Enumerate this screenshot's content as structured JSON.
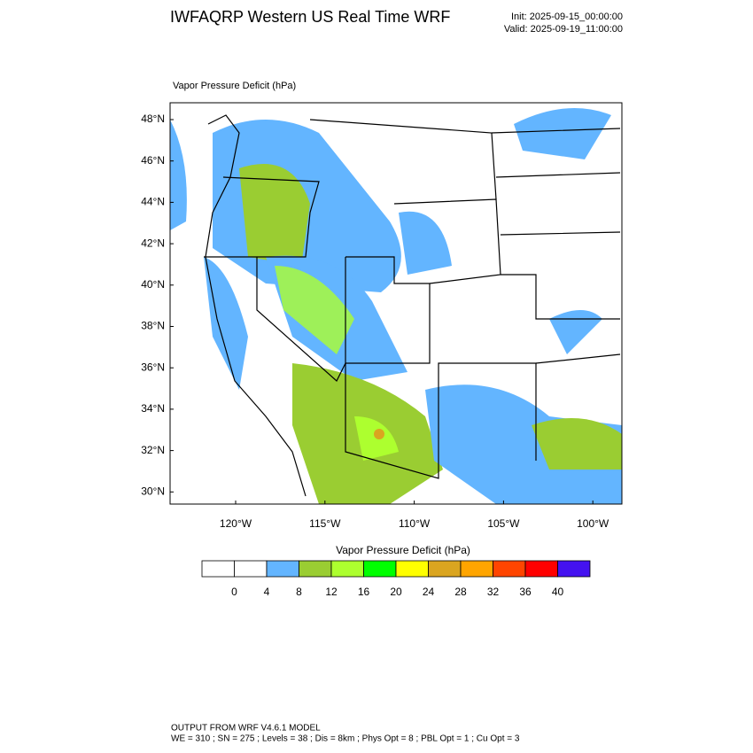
{
  "header": {
    "title": "IWFAQRP Western US Real Time WRF",
    "init": "Init: 2025-09-15_00:00:00",
    "valid": "Valid: 2025-09-19_11:00:00"
  },
  "map": {
    "label": "Vapor Pressure Deficit   (hPa)",
    "lat_labels": [
      "48°N",
      "46°N",
      "44°N",
      "42°N",
      "40°N",
      "38°N",
      "36°N",
      "34°N",
      "32°N",
      "30°N"
    ],
    "lon_labels": [
      "120°W",
      "115°W",
      "110°W",
      "105°W",
      "100°W"
    ]
  },
  "colorbar": {
    "title": "Vapor Pressure Deficit  (hPa)",
    "colors": [
      "#ffffff",
      "#ffffff",
      "#63b5ff",
      "#9acd32",
      "#adff2f",
      "#00ff00",
      "#ffff00",
      "#daa520",
      "#ffa500",
      "#ff4500",
      "#ff0000",
      "#4412f0"
    ],
    "labels": [
      0,
      4,
      8,
      12,
      16,
      20,
      24,
      28,
      32,
      36,
      40
    ]
  },
  "footer": {
    "line1": "OUTPUT FROM WRF V4.6.1 MODEL",
    "line2": "WE = 310 ; SN = 275 ; Levels = 38 ; Dis = 8km ; Phys Opt = 8 ; PBL Opt = 1 ; Cu Opt = 3"
  }
}
